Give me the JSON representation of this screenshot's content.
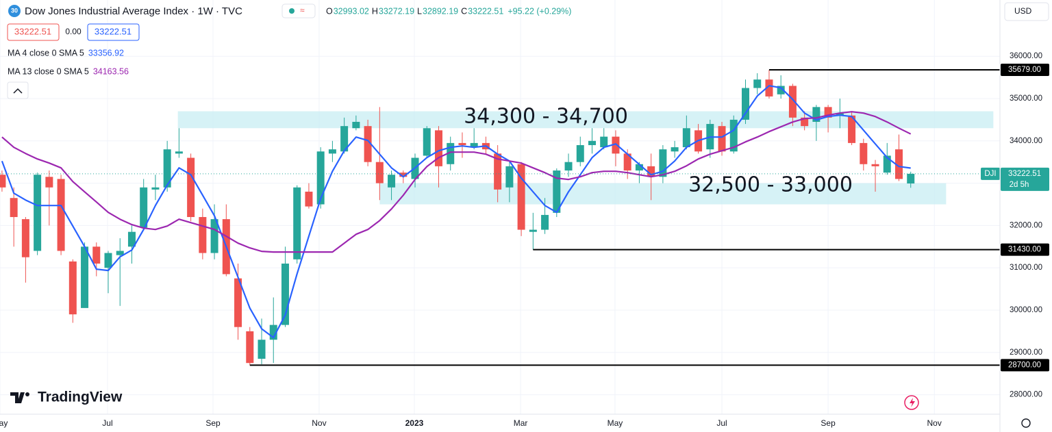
{
  "header": {
    "badge": "30",
    "title": "Dow Jones Industrial Average Index · 1W · TVC",
    "ohlc": [
      {
        "key": "O",
        "value": "32993.02"
      },
      {
        "key": "H",
        "value": "33272.19"
      },
      {
        "key": "L",
        "value": "32892.19"
      },
      {
        "key": "C",
        "value": "33222.51"
      }
    ],
    "change": "+95.22 (+0.29%)",
    "sell": "33222.51",
    "spread": "0.00",
    "buy": "33222.51",
    "currency": "USD",
    "brand": "TradingView"
  },
  "chart_data": {
    "type": "candlestick",
    "title": "Dow Jones Industrial Average Index · 1W · TVC",
    "up_color": "#26a69a",
    "down_color": "#ef5350",
    "open": [
      33200,
      32650,
      32150,
      31400,
      33150,
      33100,
      31150,
      30050,
      31500,
      31000,
      31300,
      31500,
      31950,
      32850,
      32900,
      33700,
      33600,
      32200,
      31350,
      32150,
      30750,
      29500,
      28850,
      29300,
      29650,
      31200,
      32800,
      32500,
      33700,
      33750,
      34300,
      34350,
      33500,
      32900,
      33250,
      33100,
      33650,
      34250,
      33450,
      33950,
      33850,
      33950,
      33700,
      32900,
      33450,
      31850,
      31900,
      32300,
      33300,
      33500,
      33900,
      33850,
      34100,
      33700,
      33300,
      33400,
      33150,
      33750,
      33850,
      34250,
      33800,
      34350,
      33750,
      34500,
      35250,
      35450,
      35100,
      35300,
      34550,
      34450,
      34800,
      34600,
      34600,
      33950,
      33450,
      33250,
      33800,
      32993.02
    ],
    "high": [
      33300,
      32900,
      32200,
      33250,
      33300,
      33200,
      31200,
      31600,
      31600,
      31400,
      31700,
      32000,
      33100,
      33200,
      34000,
      34300,
      33700,
      32400,
      32500,
      32500,
      31100,
      29600,
      29800,
      30300,
      31500,
      32950,
      33000,
      33850,
      34000,
      34550,
      34600,
      34500,
      34800,
      33300,
      33300,
      33700,
      34350,
      34350,
      34100,
      34200,
      34300,
      34100,
      33900,
      33500,
      33500,
      32300,
      32650,
      33350,
      33700,
      34100,
      34300,
      34300,
      34250,
      33800,
      33500,
      33700,
      33900,
      34000,
      34600,
      34400,
      34500,
      34450,
      34600,
      35450,
      35600,
      35679,
      35550,
      35350,
      34700,
      34850,
      34850,
      35000,
      34700,
      34050,
      33550,
      33950,
      34150,
      33272.19
    ],
    "low": [
      32800,
      31500,
      30650,
      31300,
      32000,
      31300,
      29700,
      30100,
      30800,
      30400,
      30100,
      31100,
      31900,
      32600,
      32800,
      33600,
      32100,
      31200,
      31200,
      30800,
      29300,
      28700,
      28720,
      28750,
      29600,
      31100,
      32400,
      32400,
      33500,
      33700,
      34250,
      33400,
      32600,
      32600,
      33000,
      32900,
      33600,
      32900,
      33300,
      33600,
      33800,
      33700,
      32550,
      32550,
      31750,
      31430,
      31800,
      32200,
      33150,
      33400,
      33700,
      33800,
      33400,
      33100,
      33000,
      32600,
      33000,
      33600,
      33800,
      33700,
      33600,
      33650,
      33700,
      34400,
      35100,
      35000,
      35000,
      34350,
      34250,
      34000,
      34200,
      34300,
      33900,
      33300,
      32800,
      33200,
      33050,
      32892.19
    ],
    "close": [
      32900,
      32200,
      31250,
      33200,
      32900,
      31400,
      29900,
      31500,
      31100,
      31350,
      31400,
      31850,
      32900,
      32900,
      33800,
      33750,
      32200,
      31350,
      32150,
      30850,
      29600,
      28750,
      29300,
      29650,
      31100,
      32900,
      32450,
      33750,
      33800,
      34350,
      34450,
      33500,
      33000,
      33200,
      33150,
      33600,
      34300,
      33400,
      33950,
      33900,
      33950,
      33800,
      32850,
      33400,
      31900,
      31900,
      32250,
      33300,
      33500,
      33900,
      34000,
      34100,
      33700,
      33300,
      33450,
      33150,
      33800,
      33850,
      34300,
      33750,
      34400,
      33750,
      34500,
      35250,
      35450,
      35050,
      35300,
      34550,
      34350,
      34800,
      34550,
      34650,
      33950,
      33450,
      33400,
      33650,
      33100,
      33222.51
    ],
    "series": [
      {
        "name": "MA 4 close 0 SMA 5",
        "last_value": "33356.92",
        "color": "#2962ff",
        "values": [
          33524,
          32764,
          32602,
          32473,
          32473,
          32473,
          31987,
          31502,
          30968,
          30936,
          31259,
          31421,
          31906,
          32473,
          32958,
          33363,
          33201,
          32715,
          32230,
          31502,
          30774,
          30046,
          29560,
          29350,
          29884,
          30855,
          31745,
          32635,
          33282,
          33767,
          34091,
          34010,
          33686,
          33363,
          33152,
          33363,
          33605,
          33767,
          33848,
          33880,
          33848,
          33880,
          33686,
          33524,
          33120,
          32796,
          32473,
          32311,
          32796,
          33201,
          33605,
          33848,
          33929,
          33686,
          33444,
          33201,
          33282,
          33524,
          33848,
          34010,
          34091,
          34091,
          34253,
          34657,
          35062,
          35304,
          35256,
          34981,
          34657,
          34495,
          34576,
          34609,
          34576,
          34253,
          33929,
          33605,
          33395,
          33356.92
        ]
      },
      {
        "name": "MA 13 close 0 SMA 5",
        "last_value": "34163.56",
        "color": "#9c27b0",
        "values": [
          34091,
          33848,
          33702,
          33573,
          33476,
          33363,
          33039,
          32796,
          32554,
          32311,
          32149,
          32020,
          31939,
          31906,
          31987,
          32149,
          32068,
          31987,
          31906,
          31745,
          31583,
          31470,
          31389,
          31373,
          31373,
          31373,
          31373,
          31373,
          31373,
          31583,
          31793,
          31906,
          32117,
          32392,
          32715,
          33088,
          33395,
          33605,
          33735,
          33735,
          33735,
          33686,
          33573,
          33524,
          33476,
          33363,
          33249,
          33120,
          33088,
          33152,
          33249,
          33282,
          33282,
          33249,
          33201,
          33152,
          33201,
          33282,
          33411,
          33573,
          33686,
          33767,
          33848,
          33977,
          34091,
          34220,
          34333,
          34447,
          34528,
          34544,
          34609,
          34657,
          34689,
          34657,
          34576,
          34447,
          34301,
          34163.56
        ]
      }
    ],
    "xlim": [
      -0.17,
      84.56
    ],
    "xticks": [
      {
        "value": -0.17,
        "label": "May"
      },
      {
        "value": 8.94,
        "label": "Jul"
      },
      {
        "value": 17.88,
        "label": "Sep"
      },
      {
        "value": 26.87,
        "label": "Nov"
      },
      {
        "value": 34.94,
        "label": "2023"
      },
      {
        "value": 43.94,
        "label": "Mar"
      },
      {
        "value": 51.94,
        "label": "May"
      },
      {
        "value": 61.0,
        "label": "Jul"
      },
      {
        "value": 70.0,
        "label": "Sep"
      },
      {
        "value": 79.0,
        "label": "Nov"
      }
    ],
    "ylim": [
      27540,
      37330
    ],
    "yticks": [
      {
        "value": 28000,
        "label": "28000.00"
      },
      {
        "value": 29000,
        "label": "29000.00"
      },
      {
        "value": 30000,
        "label": "30000.00"
      },
      {
        "value": 31000,
        "label": "31000.00"
      },
      {
        "value": 32000,
        "label": "32000.00"
      },
      {
        "value": 33000,
        "label": "33000.00"
      },
      {
        "value": 34000,
        "label": "34000.00"
      },
      {
        "value": 35000,
        "label": "35000.00"
      },
      {
        "value": 36000,
        "label": "36000.00"
      }
    ],
    "grid": true,
    "levels": [
      {
        "value": 35679,
        "label": "35679.00",
        "start": 65
      },
      {
        "value": 31430,
        "label": "31430.00",
        "start": 45
      },
      {
        "value": 28700,
        "label": "28700.00",
        "start": 21
      }
    ],
    "zones": [
      {
        "low": 34300,
        "high": 34700,
        "x": [
          14.9,
          84
        ],
        "label": "34,300 - 34,700"
      },
      {
        "low": 32500,
        "high": 33000,
        "x": [
          32,
          80
        ],
        "label": "32,500 - 33,000"
      }
    ],
    "last_price": {
      "symbol": "DJI",
      "value": 33222.51,
      "label": "33222.51",
      "countdown": "2d 5h"
    }
  }
}
